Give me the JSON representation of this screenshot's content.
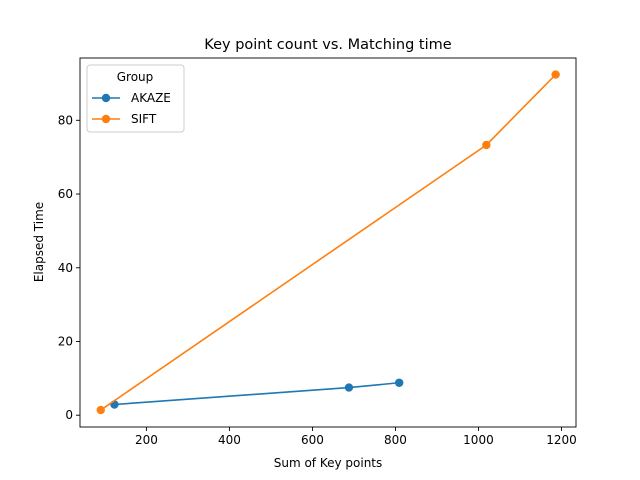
{
  "chart_data": {
    "type": "line",
    "title": "Key point count vs. Matching time",
    "xlabel": "Sum of Key points",
    "ylabel": "Elapsed Time",
    "xlim": [
      40,
      1235
    ],
    "ylim": [
      -3.2,
      96.9
    ],
    "xticks": [
      200,
      400,
      600,
      800,
      1000,
      1200
    ],
    "yticks": [
      0,
      20,
      40,
      60,
      80
    ],
    "grid": false,
    "legend": {
      "title": "Group",
      "placement": "top-left"
    },
    "series": [
      {
        "name": "AKAZE",
        "color": "#1f77b4",
        "x": [
          809,
          688,
          123
        ],
        "y": [
          8.8,
          7.5,
          2.9
        ]
      },
      {
        "name": "SIFT",
        "color": "#ff7f0e",
        "x": [
          1186,
          1019,
          90
        ],
        "y": [
          92.4,
          73.3,
          1.4
        ]
      }
    ]
  }
}
